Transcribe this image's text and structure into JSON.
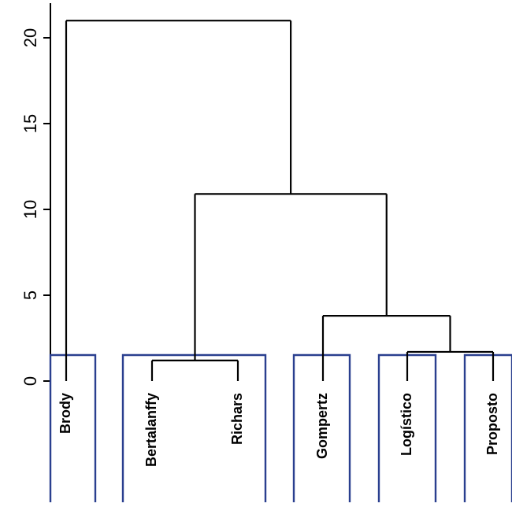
{
  "chart_data": {
    "type": "dendrogram",
    "title": "",
    "ylabel": "",
    "ylim": [
      0,
      22
    ],
    "y_ticks": [
      "0",
      "5",
      "10",
      "15",
      "20"
    ],
    "y_tick_values": [
      0,
      5,
      10,
      15,
      20
    ],
    "leaves": [
      "Brody",
      "Bertalanffy",
      "Richars",
      "Gompertz",
      "Logístico",
      "Proposto"
    ],
    "merges": [
      {
        "left": "Bertalanffy",
        "right": "Richars",
        "height": 1.2
      },
      {
        "left": "Logístico",
        "right": "Proposto",
        "height": 1.7
      },
      {
        "left": "Gompertz",
        "right": "Logístico+Proposto",
        "height": 3.8
      },
      {
        "left": "Bertalanffy+Richars",
        "right": "Gompertz+Logístico+Proposto",
        "height": 10.9
      },
      {
        "left": "Brody",
        "right": "all others",
        "height": 21.0
      }
    ],
    "cluster_boxes": [
      [
        "Brody"
      ],
      [
        "Bertalanffy",
        "Richars"
      ],
      [
        "Gompertz"
      ],
      [
        "Logístico"
      ],
      [
        "Proposto"
      ]
    ],
    "box_color": "#2a3f8f",
    "line_color": "#000000"
  }
}
